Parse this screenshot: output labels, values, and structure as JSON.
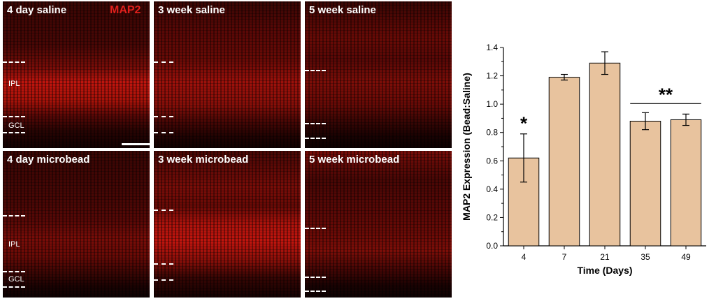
{
  "panels": [
    {
      "caption": "4 day saline",
      "stain": "MAP2",
      "labels": [
        "IPL",
        "GCL"
      ]
    },
    {
      "caption": "3 week saline"
    },
    {
      "caption": "5 week saline"
    },
    {
      "caption": "4 day microbead",
      "labels": [
        "IPL",
        "GCL"
      ]
    },
    {
      "caption": "3 week microbead"
    },
    {
      "caption": "5 week microbead"
    }
  ],
  "colors": {
    "stain": "#e0201c",
    "bar_fill": "#e8c39e",
    "bar_edge": "#000000"
  },
  "chart_data": {
    "type": "bar",
    "title": "",
    "xlabel": "Time (Days)",
    "ylabel": "MAP2 Expression (Bead:Saline)",
    "categories": [
      "4",
      "7",
      "21",
      "35",
      "49"
    ],
    "values": [
      0.62,
      1.19,
      1.29,
      0.88,
      0.89
    ],
    "errors": [
      0.17,
      0.02,
      0.08,
      0.06,
      0.04
    ],
    "ylim": [
      0.0,
      1.4
    ],
    "yticks": [
      "0.0",
      "0.2",
      "0.4",
      "0.6",
      "0.8",
      "1.0",
      "1.2",
      "1.4"
    ],
    "annotations": [
      {
        "text": "*",
        "category": "4"
      },
      {
        "text": "**",
        "categories": [
          "35",
          "49"
        ]
      }
    ],
    "grid": false,
    "legend": "none"
  }
}
